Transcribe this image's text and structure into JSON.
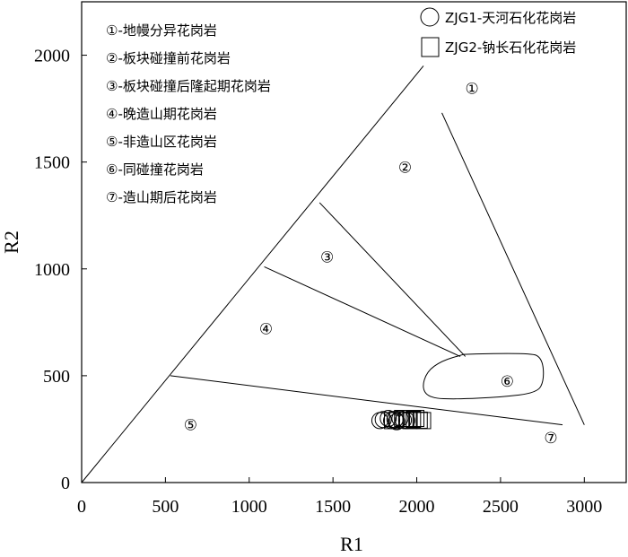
{
  "chart_data": {
    "type": "scatter",
    "xlabel": "R1",
    "ylabel": "R2",
    "xlim": [
      0,
      3250
    ],
    "ylim": [
      0,
      2250
    ],
    "xticks": [
      0,
      500,
      1000,
      1500,
      2000,
      2500,
      3000
    ],
    "yticks": [
      0,
      500,
      1000,
      1500,
      2000
    ],
    "region_legend": [
      "①-地幔分异花岗岩",
      "②-板块碰撞前花岗岩",
      "③-板块碰撞后隆起期花岗岩",
      "④-晚造山期花岗岩",
      "⑤-非造山区花岗岩",
      "⑥-同碰撞花岗岩",
      "⑦-造山期后花岗岩"
    ],
    "regions": [
      {
        "label": "①",
        "x": 2330,
        "y": 1845
      },
      {
        "label": "②",
        "x": 1930,
        "y": 1475
      },
      {
        "label": "③",
        "x": 1465,
        "y": 1055
      },
      {
        "label": "④",
        "x": 1100,
        "y": 720
      },
      {
        "label": "⑤",
        "x": 650,
        "y": 270
      },
      {
        "label": "⑥",
        "x": 2540,
        "y": 475
      },
      {
        "label": "⑦",
        "x": 2800,
        "y": 210
      }
    ],
    "boundaries": [
      [
        [
          0,
          0
        ],
        [
          2040,
          1950
        ]
      ],
      [
        [
          530,
          500
        ],
        [
          2870,
          270
        ]
      ],
      [
        [
          1090,
          1010
        ],
        [
          2260,
          590
        ]
      ],
      [
        [
          1420,
          1310
        ],
        [
          2290,
          590
        ]
      ],
      [
        [
          2150,
          1730
        ],
        [
          3000,
          270
        ]
      ]
    ],
    "field_6_outline": [
      [
        2280,
        600
      ],
      [
        2680,
        610
      ],
      [
        2750,
        580
      ],
      [
        2760,
        480
      ],
      [
        2720,
        420
      ],
      [
        2500,
        400
      ],
      [
        2240,
        390
      ],
      [
        2080,
        395
      ],
      [
        2030,
        440
      ],
      [
        2060,
        520
      ],
      [
        2150,
        570
      ],
      [
        2280,
        600
      ]
    ],
    "series": [
      {
        "name": "ZJG1-天河石化花岗岩",
        "marker": "circle",
        "points": [
          [
            1780,
            290
          ],
          [
            1800,
            295
          ],
          [
            1830,
            300
          ],
          [
            1850,
            290
          ],
          [
            1870,
            295
          ],
          [
            1880,
            285
          ],
          [
            1900,
            300
          ],
          [
            1920,
            292
          ],
          [
            1940,
            290
          ]
        ]
      },
      {
        "name": "ZJG2-钠长石化花岗岩",
        "marker": "square",
        "points": [
          [
            1850,
            290
          ],
          [
            1880,
            295
          ],
          [
            1910,
            300
          ],
          [
            1940,
            292
          ],
          [
            1960,
            290
          ],
          [
            1980,
            296
          ],
          [
            2000,
            300
          ],
          [
            2020,
            292
          ],
          [
            2040,
            290
          ]
        ]
      }
    ]
  }
}
